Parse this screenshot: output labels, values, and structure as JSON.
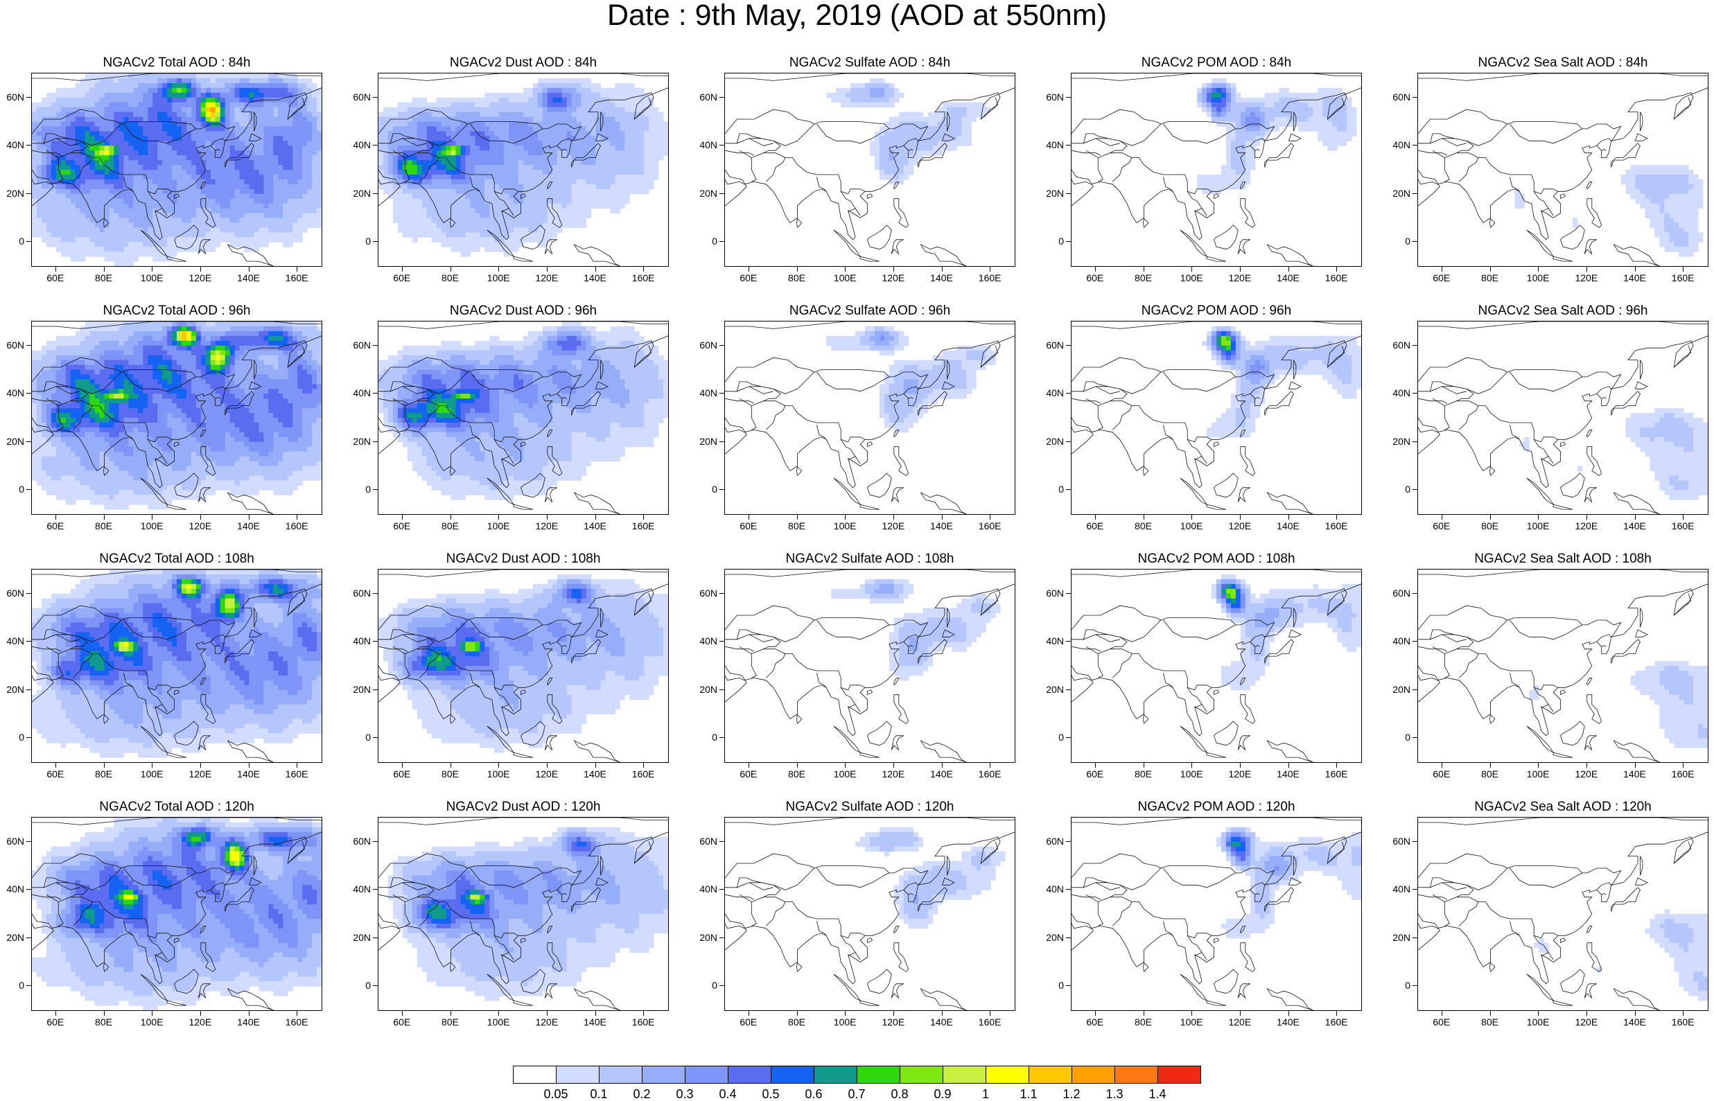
{
  "title": "Date : 9th May, 2019 (AOD at 550nm)",
  "panels": [
    {
      "title": "NGACv2 Total AOD : 84h",
      "field": "total",
      "hour": 84
    },
    {
      "title": "NGACv2 Dust AOD : 84h",
      "field": "dust",
      "hour": 84
    },
    {
      "title": "NGACv2 Sulfate AOD : 84h",
      "field": "sulfate",
      "hour": 84
    },
    {
      "title": "NGACv2 POM AOD : 84h",
      "field": "pom",
      "hour": 84
    },
    {
      "title": "NGACv2 Sea Salt AOD : 84h",
      "field": "seasalt",
      "hour": 84
    },
    {
      "title": "NGACv2 Total AOD : 96h",
      "field": "total",
      "hour": 96
    },
    {
      "title": "NGACv2 Dust AOD : 96h",
      "field": "dust",
      "hour": 96
    },
    {
      "title": "NGACv2 Sulfate AOD : 96h",
      "field": "sulfate",
      "hour": 96
    },
    {
      "title": "NGACv2 POM AOD : 96h",
      "field": "pom",
      "hour": 96
    },
    {
      "title": "NGACv2 Sea Salt AOD : 96h",
      "field": "seasalt",
      "hour": 96
    },
    {
      "title": "NGACv2 Total AOD : 108h",
      "field": "total",
      "hour": 108
    },
    {
      "title": "NGACv2 Dust AOD : 108h",
      "field": "dust",
      "hour": 108
    },
    {
      "title": "NGACv2 Sulfate AOD : 108h",
      "field": "sulfate",
      "hour": 108
    },
    {
      "title": "NGACv2 POM AOD : 108h",
      "field": "pom",
      "hour": 108
    },
    {
      "title": "NGACv2 Sea Salt AOD : 108h",
      "field": "seasalt",
      "hour": 108
    },
    {
      "title": "NGACv2 Total AOD : 120h",
      "field": "total",
      "hour": 120
    },
    {
      "title": "NGACv2 Dust AOD : 120h",
      "field": "dust",
      "hour": 120
    },
    {
      "title": "NGACv2 Sulfate AOD : 120h",
      "field": "sulfate",
      "hour": 120
    },
    {
      "title": "NGACv2 POM AOD : 120h",
      "field": "pom",
      "hour": 120
    },
    {
      "title": "NGACv2 Sea Salt  AOD : 120h",
      "field": "seasalt",
      "hour": 120
    }
  ],
  "axes": {
    "lon_range": [
      50,
      170
    ],
    "lat_range": [
      -10,
      70
    ],
    "lon_ticks": [
      60,
      80,
      100,
      120,
      140,
      160
    ],
    "lon_labels": [
      "60E",
      "80E",
      "100E",
      "120E",
      "140E",
      "160E"
    ],
    "lat_ticks": [
      60,
      40,
      20,
      0
    ],
    "lat_labels": [
      "60N",
      "40N",
      "20N",
      "0"
    ]
  },
  "colorbar": {
    "labels": [
      "0.05",
      "0.1",
      "0.2",
      "0.3",
      "0.4",
      "0.5",
      "0.6",
      "0.7",
      "0.8",
      "0.9",
      "1",
      "1.1",
      "1.2",
      "1.3",
      "1.4"
    ],
    "colors": [
      "#ffffff",
      "#d2dcff",
      "#b4c6fc",
      "#96aefa",
      "#7e94f6",
      "#5a6cf0",
      "#1463f2",
      "#0f9a8c",
      "#2ed80c",
      "#80e810",
      "#c8f040",
      "#ffff00",
      "#ffc800",
      "#ffa000",
      "#ff7814",
      "#f02814"
    ]
  }
}
